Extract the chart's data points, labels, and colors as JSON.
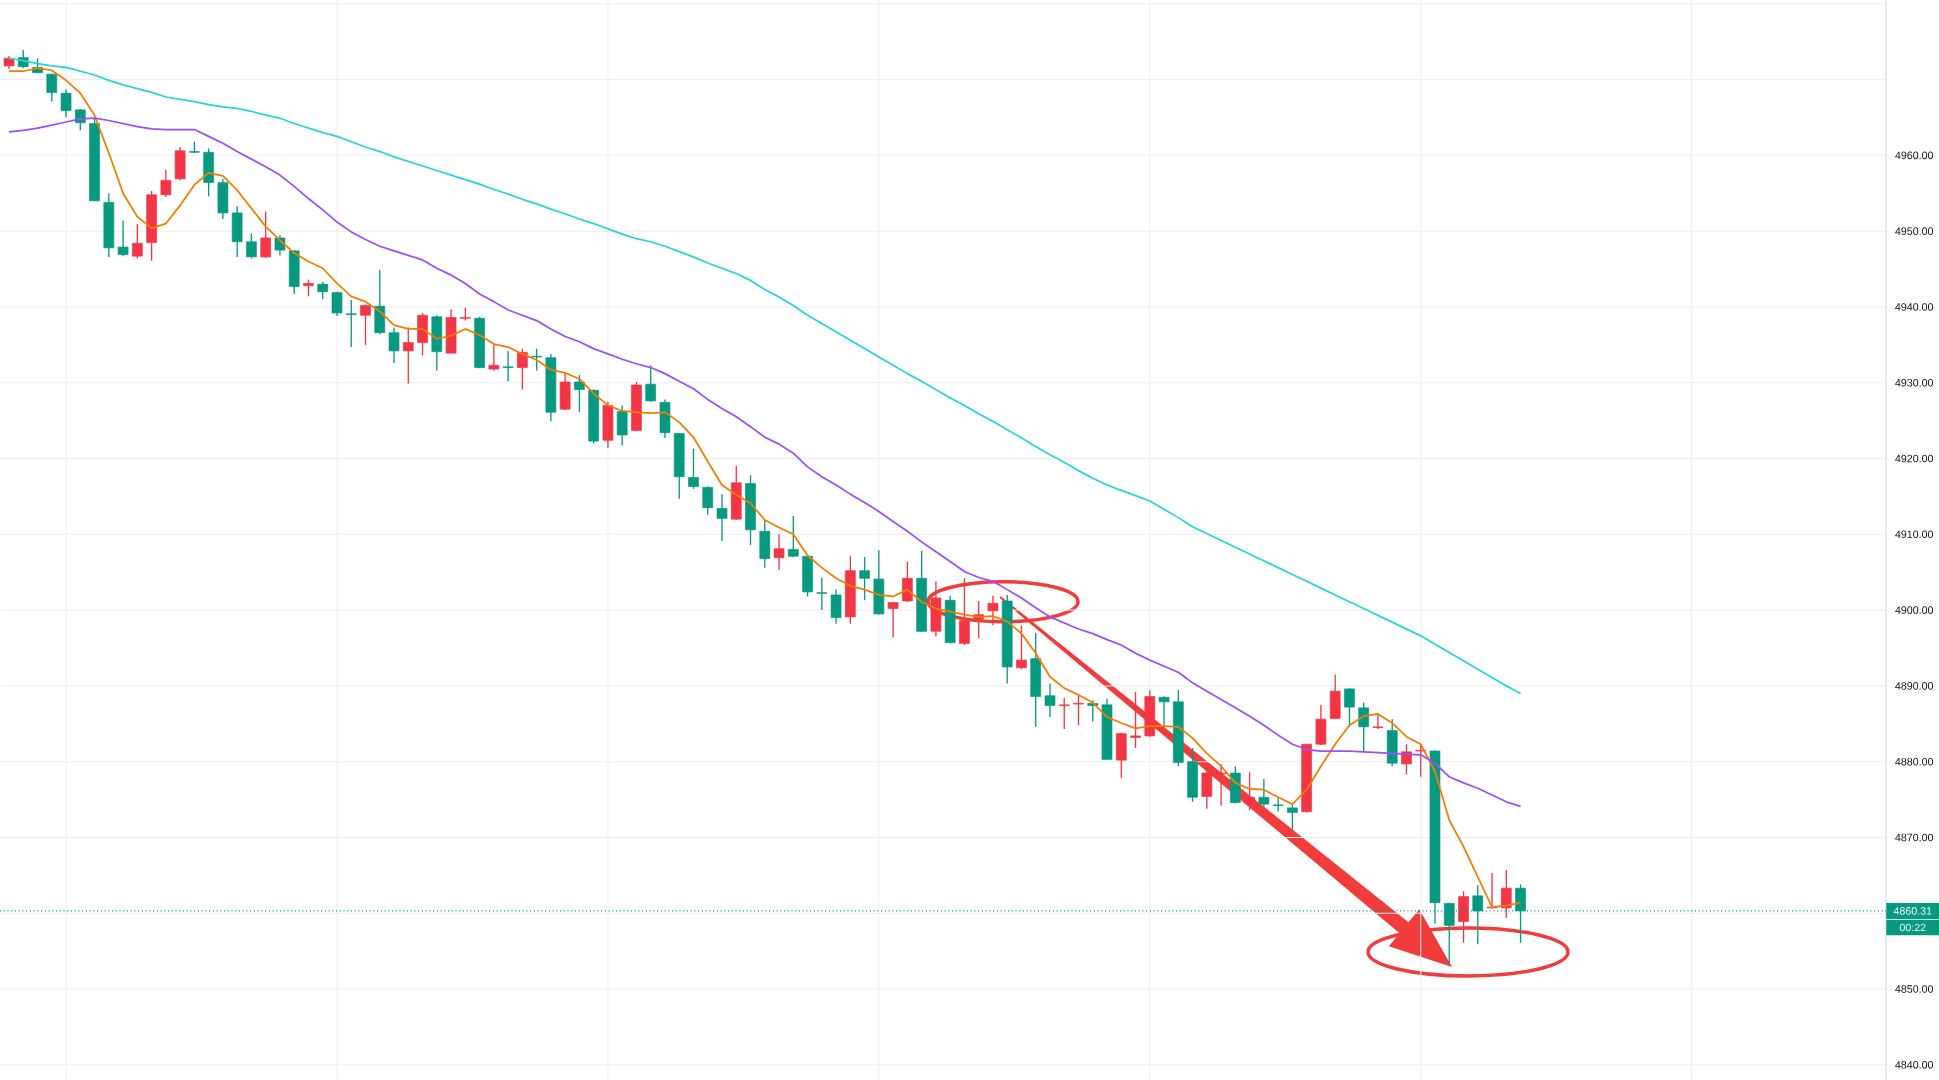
{
  "chart_data": {
    "type": "candlestick",
    "categories": [
      null,
      null,
      null,
      null,
      null,
      null,
      null,
      null,
      null,
      null,
      null,
      null,
      null,
      null,
      null,
      null,
      null,
      null,
      null,
      null,
      null,
      null,
      null,
      null,
      null,
      null,
      null,
      null,
      null,
      null,
      null,
      null,
      null,
      null,
      null,
      null,
      null,
      null,
      null,
      null,
      null,
      null,
      null,
      null,
      null,
      null,
      null,
      null,
      null,
      null,
      null,
      null,
      null,
      null,
      null,
      null,
      null,
      null,
      null,
      null,
      null,
      null,
      null,
      null,
      null,
      null,
      null,
      null,
      null,
      null,
      null,
      null,
      null,
      null,
      null,
      null,
      null,
      null,
      null,
      null,
      null,
      null,
      null,
      null,
      null,
      null,
      null,
      null,
      null,
      null,
      null,
      null,
      null,
      null,
      null,
      null,
      null,
      null,
      null,
      null,
      null,
      null,
      null,
      null,
      null,
      null,
      null
    ],
    "ohlc": [
      [
        4971.8,
        4973.1,
        4971.4,
        4972.8
      ],
      [
        4972.9,
        4973.9,
        4971.5,
        4971.7
      ],
      [
        4971.6,
        4972.8,
        4970.9,
        4970.9
      ],
      [
        4970.7,
        4970.8,
        4967.1,
        4968.3
      ],
      [
        4968.2,
        4968.7,
        4965.0,
        4965.9
      ],
      [
        4966.0,
        4966.1,
        4963.3,
        4964.3
      ],
      [
        4964.2,
        4964.9,
        4954.0,
        4954.0
      ],
      [
        4953.8,
        4955.0,
        4946.6,
        4947.8
      ],
      [
        4947.9,
        4951.4,
        4946.7,
        4946.9
      ],
      [
        4946.7,
        4950.9,
        4946.4,
        4948.4
      ],
      [
        4948.5,
        4955.3,
        4946.1,
        4954.8
      ],
      [
        4954.8,
        4958.1,
        4954.5,
        4956.7
      ],
      [
        4956.9,
        4961.1,
        4956.7,
        4960.6
      ],
      [
        4960.5,
        4961.8,
        4960.3,
        4960.4
      ],
      [
        4960.4,
        4960.9,
        4954.6,
        4956.4
      ],
      [
        4956.4,
        4956.9,
        4951.6,
        4952.4
      ],
      [
        4952.4,
        4953.3,
        4946.6,
        4948.6
      ],
      [
        4948.6,
        4949.7,
        4946.4,
        4946.6
      ],
      [
        4946.6,
        4952.6,
        4946.5,
        4949.1
      ],
      [
        4949.1,
        4949.5,
        4946.8,
        4947.5
      ],
      [
        4947.4,
        4947.5,
        4941.7,
        4942.7
      ],
      [
        4942.8,
        4943.6,
        4941.4,
        4943.1
      ],
      [
        4943.0,
        4943.3,
        4941.0,
        4942.0
      ],
      [
        4941.9,
        4942.0,
        4938.8,
        4939.2
      ],
      [
        4939.1,
        4940.9,
        4934.7,
        4939.0
      ],
      [
        4938.9,
        4940.3,
        4935.0,
        4940.2
      ],
      [
        4940.1,
        4944.9,
        4936.4,
        4936.6
      ],
      [
        4936.6,
        4937.3,
        4932.6,
        4934.2
      ],
      [
        4934.2,
        4937.3,
        4929.9,
        4935.3
      ],
      [
        4935.3,
        4939.2,
        4933.6,
        4938.9
      ],
      [
        4938.7,
        4938.9,
        4931.6,
        4934.1
      ],
      [
        4933.9,
        4939.7,
        4933.9,
        4938.6
      ],
      [
        4938.5,
        4939.9,
        4938.2,
        4938.6
      ],
      [
        4938.5,
        4938.7,
        4931.9,
        4932.0
      ],
      [
        4931.8,
        4935.0,
        4931.6,
        4932.3
      ],
      [
        4932.1,
        4934.2,
        4930.2,
        4932.0
      ],
      [
        4932.0,
        4934.5,
        4929.1,
        4934.0
      ],
      [
        4933.5,
        4934.5,
        4931.6,
        4933.4
      ],
      [
        4933.3,
        4933.8,
        4924.9,
        4926.1
      ],
      [
        4926.5,
        4931.2,
        4926.4,
        4930.1
      ],
      [
        4930.1,
        4931.0,
        4926.1,
        4929.1
      ],
      [
        4929.0,
        4929.1,
        4922.0,
        4922.3
      ],
      [
        4922.4,
        4927.5,
        4921.4,
        4927.0
      ],
      [
        4926.2,
        4927.0,
        4921.7,
        4923.1
      ],
      [
        4923.7,
        4930.1,
        4923.6,
        4929.7
      ],
      [
        4929.8,
        4932.3,
        4927.5,
        4927.6
      ],
      [
        4927.4,
        4927.8,
        4922.7,
        4923.4
      ],
      [
        4923.3,
        4923.4,
        4914.7,
        4917.6
      ],
      [
        4917.5,
        4921.3,
        4916.0,
        4916.3
      ],
      [
        4916.2,
        4916.3,
        4912.6,
        4913.5
      ],
      [
        4913.4,
        4915.3,
        4909.1,
        4912.1
      ],
      [
        4912.0,
        4919.0,
        4911.9,
        4916.8
      ],
      [
        4916.7,
        4917.8,
        4908.6,
        4910.6
      ],
      [
        4910.4,
        4911.9,
        4905.6,
        4906.8
      ],
      [
        4906.9,
        4910.0,
        4905.3,
        4908.1
      ],
      [
        4908.0,
        4912.4,
        4907.0,
        4907.1
      ],
      [
        4907.1,
        4907.2,
        4901.8,
        4902.4
      ],
      [
        4902.3,
        4904.3,
        4900.0,
        4902.2
      ],
      [
        4902.0,
        4902.7,
        4898.2,
        4899.0
      ],
      [
        4899.1,
        4907.1,
        4898.2,
        4905.2
      ],
      [
        4905.2,
        4907.0,
        4901.3,
        4904.2
      ],
      [
        4904.1,
        4907.9,
        4899.4,
        4899.5
      ],
      [
        4900.2,
        4901.1,
        4896.4,
        4901.0
      ],
      [
        4901.2,
        4906.4,
        4901.1,
        4904.2
      ],
      [
        4904.2,
        4907.8,
        4897.1,
        4897.2
      ],
      [
        4897.2,
        4903.8,
        4896.5,
        4901.6
      ],
      [
        4901.3,
        4901.9,
        4895.6,
        4895.7
      ],
      [
        4895.6,
        4904.2,
        4895.4,
        4898.6
      ],
      [
        4898.8,
        4901.2,
        4896.3,
        4899.4
      ],
      [
        4899.9,
        4901.9,
        4898.0,
        4900.9
      ],
      [
        4901.2,
        4902.0,
        4890.3,
        4892.5
      ],
      [
        4892.4,
        4898.0,
        4892.2,
        4893.4
      ],
      [
        4893.6,
        4897.0,
        4884.6,
        4888.6
      ],
      [
        4888.7,
        4890.3,
        4885.9,
        4887.4
      ],
      [
        4887.4,
        4888.4,
        4884.3,
        4887.5
      ],
      [
        4887.6,
        4888.9,
        4884.8,
        4887.7
      ],
      [
        4887.7,
        4888.1,
        4885.3,
        4887.4
      ],
      [
        4887.5,
        4888.3,
        4880.2,
        4880.3
      ],
      [
        4880.2,
        4883.8,
        4877.8,
        4883.7
      ],
      [
        4883.2,
        4889.2,
        4881.8,
        4883.4
      ],
      [
        4883.4,
        4889.4,
        4883.3,
        4888.6
      ],
      [
        4888.5,
        4888.6,
        4884.6,
        4887.9
      ],
      [
        4887.9,
        4889.5,
        4879.4,
        4879.9
      ],
      [
        4880.0,
        4881.8,
        4874.7,
        4875.3
      ],
      [
        4875.4,
        4879.6,
        4873.8,
        4878.5
      ],
      [
        4878.4,
        4879.7,
        4874.2,
        4878.5
      ],
      [
        4878.5,
        4879.4,
        4874.5,
        4874.6
      ],
      [
        4874.5,
        4878.6,
        4873.6,
        4875.3
      ],
      [
        4875.3,
        4877.7,
        4874.1,
        4874.4
      ],
      [
        4874.3,
        4875.3,
        4873.4,
        4874.2
      ],
      [
        4873.9,
        4874.4,
        4871.0,
        4873.3
      ],
      [
        4873.4,
        4882.3,
        4873.3,
        4882.3
      ],
      [
        4882.3,
        4887.5,
        4882.2,
        4885.6
      ],
      [
        4885.7,
        4891.5,
        4885.6,
        4889.3
      ],
      [
        4889.6,
        4889.7,
        4884.6,
        4887.2
      ],
      [
        4887.1,
        4887.8,
        4881.3,
        4884.6
      ],
      [
        4884.5,
        4886.3,
        4884.3,
        4884.6
      ],
      [
        4884.1,
        4885.6,
        4879.4,
        4879.8
      ],
      [
        4879.7,
        4882.3,
        4878.3,
        4881.3
      ],
      [
        4881.4,
        4882.3,
        4878.0,
        4881.5
      ],
      [
        4881.4,
        4881.5,
        4858.6,
        4861.4
      ],
      [
        4861.3,
        4861.4,
        4853.3,
        4858.4
      ],
      [
        4858.9,
        4862.9,
        4856.1,
        4862.2
      ],
      [
        4862.3,
        4863.7,
        4855.9,
        4860.3
      ],
      [
        4860.7,
        4865.3,
        4860.6,
        4860.8
      ],
      [
        4860.7,
        4865.7,
        4859.4,
        4863.3
      ],
      [
        4863.3,
        4863.8,
        4856.1,
        4860.31
      ]
    ],
    "colors": [
      "#f23645",
      "#089981",
      "#089981",
      "#089981",
      "#089981",
      "#089981",
      "#089981",
      "#089981",
      "#089981",
      "#f23645",
      "#f23645",
      "#f23645",
      "#f23645",
      "#089981",
      "#089981",
      "#089981",
      "#089981",
      "#089981",
      "#f23645",
      "#089981",
      "#089981",
      "#f23645",
      "#089981",
      "#089981",
      "#089981",
      "#f23645",
      "#089981",
      "#089981",
      "#f23645",
      "#f23645",
      "#089981",
      "#f23645",
      "#f23645",
      "#089981",
      "#f23645",
      "#089981",
      "#f23645",
      "#089981",
      "#089981",
      "#f23645",
      "#089981",
      "#089981",
      "#f23645",
      "#089981",
      "#f23645",
      "#089981",
      "#089981",
      "#089981",
      "#089981",
      "#089981",
      "#089981",
      "#f23645",
      "#089981",
      "#089981",
      "#f23645",
      "#089981",
      "#089981",
      "#089981",
      "#089981",
      "#f23645",
      "#089981",
      "#089981",
      "#f23645",
      "#f23645",
      "#089981",
      "#f23645",
      "#089981",
      "#f23645",
      "#f23645",
      "#f23645",
      "#089981",
      "#f23645",
      "#089981",
      "#089981",
      "#f23645",
      "#f23645",
      "#089981",
      "#089981",
      "#f23645",
      "#f23645",
      "#f23645",
      "#089981",
      "#089981",
      "#089981",
      "#f23645",
      "#f23645",
      "#089981",
      "#f23645",
      "#089981",
      "#089981",
      "#089981",
      "#f23645",
      "#f23645",
      "#f23645",
      "#089981",
      "#089981",
      "#f23645",
      "#089981",
      "#f23645",
      "#f23645",
      "#089981",
      "#089981",
      "#f23645",
      "#089981",
      "#f23645",
      "#f23645",
      "#089981"
    ],
    "series": [
      {
        "type": "line",
        "color": "#f57c00",
        "values": [
          4971.1,
          4971.1,
          4971.5,
          4971.2,
          4969.9,
          4968.2,
          4965.3,
          4960.3,
          4955.0,
          4951.9,
          4950.4,
          4951.0,
          4953.4,
          4956.1,
          4957.7,
          4957.3,
          4955.4,
          4953.0,
          4950.6,
          4948.8,
          4947.1,
          4946.0,
          4945.1,
          4943.1,
          4941.4,
          4940.7,
          4939.4,
          4937.6,
          4937.1,
          4937.1,
          4935.8,
          4936.2,
          4937.1,
          4936.3,
          4935.1,
          4934.7,
          4933.8,
          4933.0,
          4931.7,
          4931.3,
          4930.5,
          4928.6,
          4927.0,
          4926.3,
          4926.1,
          4926.0,
          4926.1,
          4924.8,
          4922.8,
          4919.6,
          4916.5,
          4915.2,
          4914.1,
          4911.9,
          4910.9,
          4910.0,
          4907.2,
          4905.6,
          4904.2,
          4903.2,
          4902.7,
          4902.0,
          4901.8,
          4902.7,
          4901.1,
          4900.2,
          4899.8,
          4899.4,
          4899.1,
          4899.2,
          4898.5,
          4896.9,
          4894.3,
          4891.2,
          4889.7,
          4888.8,
          4887.8,
          4885.9,
          4885.1,
          4884.4,
          4884.7,
          4884.7,
          4884.6,
          4883.1,
          4881.1,
          4879.4,
          4877.2,
          4876.4,
          4876.3,
          4875.3,
          4874.4,
          4876.3,
          4879.4,
          4882.3,
          4884.8,
          4886.0,
          4886.3,
          4885.1,
          4883.3,
          4882.3,
          4878.7,
          4872.3,
          4868.8,
          4864.8,
          4860.8,
          4861.0,
          4861.4
        ]
      },
      {
        "type": "line",
        "color": "#9c4dff",
        "values": [
          4963.1,
          4963.3,
          4963.6,
          4964.0,
          4964.4,
          4964.8,
          4964.9,
          4964.6,
          4964.2,
          4963.8,
          4963.5,
          4963.4,
          4963.4,
          4963.4,
          4962.5,
          4961.6,
          4960.5,
          4959.5,
          4958.5,
          4957.4,
          4955.9,
          4954.3,
          4952.8,
          4951.2,
          4949.9,
          4948.9,
          4948.0,
          4947.4,
          4946.8,
          4946.2,
          4945.1,
          4944.2,
          4943.1,
          4941.7,
          4940.7,
          4939.6,
          4938.9,
          4938.2,
          4937.1,
          4936.1,
          4935.4,
          4934.5,
          4933.8,
          4933.1,
          4932.5,
          4932.0,
          4931.2,
          4930.2,
          4929.2,
          4927.8,
          4926.6,
          4925.5,
          4924.2,
          4922.8,
          4921.9,
          4920.7,
          4918.9,
          4917.6,
          4916.5,
          4915.3,
          4914.2,
          4913.0,
          4911.7,
          4910.4,
          4909.0,
          4907.7,
          4906.4,
          4905.1,
          4904.3,
          4903.8,
          4902.7,
          4901.6,
          4900.3,
          4899.1,
          4898.3,
          4897.5,
          4896.9,
          4896.1,
          4895.4,
          4894.3,
          4893.4,
          4892.6,
          4891.8,
          4890.4,
          4889.3,
          4888.2,
          4887.1,
          4886.0,
          4884.8,
          4883.5,
          4882.3,
          4881.6,
          4881.4,
          4881.4,
          4881.4,
          4881.3,
          4881.2,
          4881.1,
          4881.0,
          4880.9,
          4879.8,
          4878.0,
          4877.2,
          4876.5,
          4875.6,
          4874.7,
          4874.1
        ]
      },
      {
        "type": "line",
        "color": "#26d4dc",
        "values": [
          4972.8,
          4972.5,
          4972.1,
          4971.8,
          4971.6,
          4971.1,
          4970.6,
          4969.9,
          4969.3,
          4968.8,
          4968.3,
          4967.7,
          4967.4,
          4967.1,
          4966.7,
          4966.4,
          4966.2,
          4965.8,
          4965.3,
          4964.9,
          4964.2,
          4963.6,
          4963.0,
          4962.5,
          4961.8,
          4961.1,
          4960.5,
          4959.8,
          4959.2,
          4958.6,
          4958.0,
          4957.4,
          4956.8,
          4956.2,
          4955.5,
          4954.9,
          4954.2,
          4953.6,
          4952.9,
          4952.3,
          4951.6,
          4951.0,
          4950.3,
          4949.6,
          4949.0,
          4948.6,
          4948.0,
          4947.3,
          4946.6,
          4945.8,
          4945.1,
          4944.4,
          4943.5,
          4942.3,
          4941.3,
          4940.2,
          4938.9,
          4937.8,
          4936.7,
          4935.6,
          4934.5,
          4933.4,
          4932.3,
          4931.2,
          4930.2,
          4929.1,
          4928.0,
          4927.0,
          4925.9,
          4924.9,
          4923.8,
          4922.7,
          4921.6,
          4920.5,
          4919.5,
          4918.4,
          4917.4,
          4916.5,
          4915.8,
          4915.1,
          4914.4,
          4913.3,
          4912.2,
          4911.0,
          4910.1,
          4909.2,
          4908.3,
          4907.4,
          4906.5,
          4905.6,
          4904.7,
          4903.8,
          4902.9,
          4902.0,
          4901.1,
          4900.2,
          4899.3,
          4898.4,
          4897.5,
          4896.6,
          4895.5,
          4894.4,
          4893.3,
          4892.2,
          4891.1,
          4890.0,
          4889.0
        ]
      }
    ],
    "ylim": [
      4838.0,
      4980.5
    ],
    "yticks": [
      {
        "value": 4840,
        "label": "4840.00"
      },
      {
        "value": 4850,
        "label": "4850.00"
      },
      {
        "value": 4860,
        "label": null
      },
      {
        "value": 4870,
        "label": "4870.00"
      },
      {
        "value": 4880,
        "label": "4880.00"
      },
      {
        "value": 4890,
        "label": "4890.00"
      },
      {
        "value": 4900,
        "label": "4900.00"
      },
      {
        "value": 4910,
        "label": "4910.00"
      },
      {
        "value": 4920,
        "label": "4920.00"
      },
      {
        "value": 4930,
        "label": "4930.00"
      },
      {
        "value": 4940,
        "label": "4940.00"
      },
      {
        "value": 4950,
        "label": "4950.00"
      },
      {
        "value": 4960,
        "label": "4960.00"
      },
      {
        "value": 4970,
        "label": null
      },
      {
        "value": 4980,
        "label": null
      }
    ],
    "grid": true,
    "tick_labels": "y",
    "ref_lines": [
      {
        "axis": "y",
        "value": 4860.31,
        "label": "4860.31",
        "color": "#089981",
        "line_style": "dotted"
      }
    ],
    "annotations": [
      "00:22"
    ]
  }
}
